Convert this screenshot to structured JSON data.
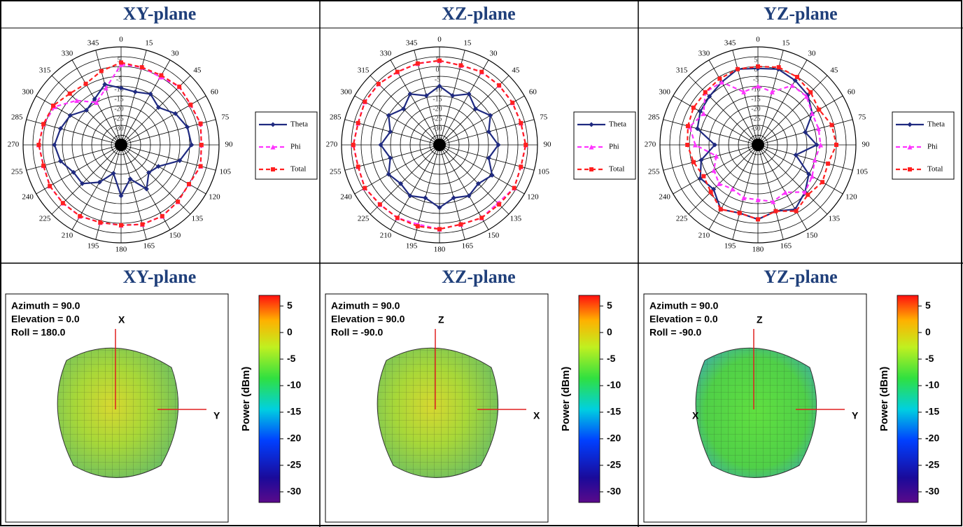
{
  "chart_data": [
    {
      "type": "polar",
      "title": "XY-plane",
      "angles": [
        0,
        15,
        30,
        45,
        60,
        75,
        90,
        105,
        120,
        135,
        150,
        165,
        180,
        195,
        210,
        225,
        240,
        255,
        270,
        285,
        300,
        315,
        330,
        345
      ],
      "rlim": [
        -40,
        10
      ],
      "rticks": [
        5,
        0,
        -5,
        -10,
        -15,
        -20,
        -25,
        -30,
        -35
      ],
      "series": [
        {
          "name": "Theta",
          "color": "#1f2a80",
          "line_style": "solid",
          "marker": "diamond",
          "values": [
            -11,
            -12,
            -10,
            -13,
            -8,
            -5,
            -4,
            -9,
            -18,
            -20,
            -14,
            -22,
            -14,
            -25,
            -18,
            -12,
            -12,
            -8,
            -6,
            -8,
            -10,
            -15,
            -13,
            -8
          ]
        },
        {
          "name": "Phi",
          "color": "#ff33ff",
          "line_style": "dashed",
          "marker": "triangle",
          "values": [
            1,
            1,
            0,
            2,
            1,
            2,
            1,
            2,
            0,
            1,
            2,
            2,
            1,
            1,
            2,
            2,
            2,
            1,
            2,
            1,
            -1,
            -8,
            -15,
            -10
          ]
        },
        {
          "name": "Total",
          "color": "#ff2020",
          "line_style": "dashed",
          "marker": "square",
          "values": [
            2,
            1,
            1,
            2,
            1,
            2,
            1,
            2,
            0,
            1,
            2,
            2,
            1,
            1,
            2,
            2,
            2,
            1,
            2,
            1,
            0,
            -3,
            -4,
            -1
          ]
        }
      ]
    },
    {
      "type": "polar",
      "title": "XZ-plane",
      "angles": [
        0,
        15,
        30,
        45,
        60,
        75,
        90,
        105,
        120,
        135,
        150,
        165,
        180,
        195,
        210,
        225,
        240,
        255,
        270,
        285,
        300,
        315,
        330,
        345
      ],
      "rlim": [
        -40,
        10
      ],
      "rticks": [
        5,
        0,
        -5,
        -10,
        -15,
        -20,
        -25,
        -30,
        -35
      ],
      "series": [
        {
          "name": "Theta",
          "color": "#1f2a80",
          "line_style": "solid",
          "marker": "diamond",
          "values": [
            -10,
            -14,
            -10,
            -14,
            -10,
            -14,
            -10,
            -14,
            -9,
            -12,
            -10,
            -12,
            -8,
            -12,
            -10,
            -12,
            -10,
            -14,
            -10,
            -14,
            -10,
            -14,
            -10,
            -14
          ]
        },
        {
          "name": "Phi",
          "color": "#ff33ff",
          "line_style": "dashed",
          "marker": "triangle",
          "values": [
            3,
            2,
            3,
            3,
            3,
            3,
            4,
            3,
            4,
            2,
            3,
            2,
            3,
            2,
            3,
            3,
            4,
            3,
            4,
            3,
            4,
            4,
            3,
            3
          ]
        },
        {
          "name": "Total",
          "color": "#ff2020",
          "line_style": "dashed",
          "marker": "square",
          "values": [
            3,
            2,
            3,
            3,
            3,
            3,
            4,
            3,
            4,
            3,
            3,
            2,
            3,
            3,
            3,
            3,
            4,
            3,
            4,
            3,
            4,
            4,
            3,
            3
          ]
        }
      ]
    },
    {
      "type": "polar",
      "title": "YZ-plane",
      "angles": [
        0,
        15,
        30,
        45,
        60,
        75,
        90,
        105,
        120,
        135,
        150,
        165,
        180,
        195,
        210,
        225,
        240,
        255,
        270,
        285,
        300,
        315,
        330,
        345
      ],
      "rlim": [
        -40,
        10
      ],
      "rticks": [
        5,
        0,
        -5,
        -10,
        -15,
        -20,
        -25,
        -30,
        -35
      ],
      "series": [
        {
          "name": "Theta",
          "color": "#1f2a80",
          "line_style": "solid",
          "marker": "diamond",
          "values": [
            -1,
            0,
            -2,
            -4,
            -8,
            -15,
            -10,
            -20,
            -10,
            -6,
            -2,
            -5,
            -2,
            -4,
            -2,
            -8,
            -6,
            -10,
            -18,
            -8,
            -6,
            -5,
            -3,
            0
          ]
        },
        {
          "name": "Phi",
          "color": "#ff33ff",
          "line_style": "dashed",
          "marker": "triangle",
          "values": [
            -10,
            -12,
            -5,
            -5,
            -8,
            -8,
            -8,
            -10,
            -8,
            -6,
            -12,
            -10,
            -12,
            -12,
            -14,
            -12,
            -14,
            -18,
            -8,
            -4,
            -8,
            -2,
            -3,
            -12
          ]
        },
        {
          "name": "Total",
          "color": "#ff2020",
          "line_style": "dashed",
          "marker": "square",
          "values": [
            0,
            1,
            0,
            -2,
            -4,
            -1,
            0,
            -3,
            -2,
            -4,
            -1,
            -5,
            -2,
            -4,
            -2,
            -6,
            -8,
            -6,
            -4,
            -3,
            -2,
            -2,
            -1,
            0
          ]
        }
      ]
    },
    {
      "type": "pattern3d",
      "title": "XY-plane",
      "annotations": [
        "Azimuth = 90.0",
        "Elevation = 0.0",
        "Roll = 180.0"
      ],
      "axis_labels": {
        "up": "X",
        "right": "Y"
      },
      "colorbar_label": "Power (dBm)",
      "clim": [
        -32,
        7
      ],
      "cticks": [
        5,
        0,
        -5,
        -10,
        -15,
        -20,
        -25,
        -30
      ]
    },
    {
      "type": "pattern3d",
      "title": "XZ-plane",
      "annotations": [
        "Azimuth = 90.0",
        "Elevation = 90.0",
        "Roll = -90.0"
      ],
      "axis_labels": {
        "up": "Z",
        "right": "X"
      },
      "colorbar_label": "Power (dBm)",
      "clim": [
        -32,
        7
      ],
      "cticks": [
        5,
        0,
        -5,
        -10,
        -15,
        -20,
        -25,
        -30
      ]
    },
    {
      "type": "pattern3d",
      "title": "YZ-plane",
      "annotations": [
        "Azimuth = 90.0",
        "Elevation = 0.0",
        "Roll = -90.0"
      ],
      "axis_labels": {
        "up": "Z",
        "right": "Y",
        "center": "X"
      },
      "colorbar_label": "Power (dBm)",
      "clim": [
        -32,
        7
      ],
      "cticks": [
        5,
        0,
        -5,
        -10,
        -15,
        -20,
        -25,
        -30
      ]
    }
  ]
}
